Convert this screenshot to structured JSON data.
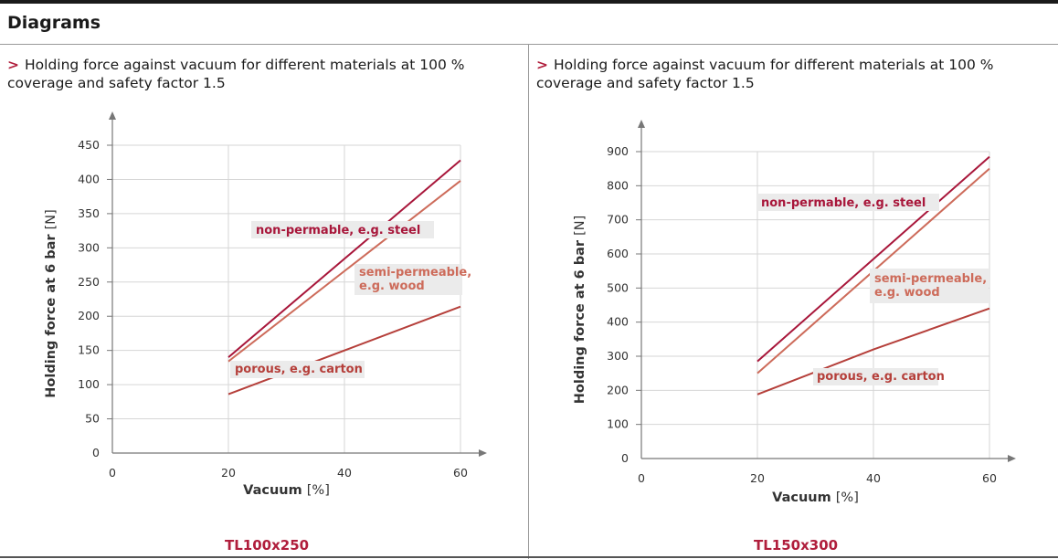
{
  "section_title": "Diagrams",
  "panels": [
    {
      "caption_marker": ">",
      "caption": "Holding force against vacuum for different materials at 100 % coverage and safety factor 1.5",
      "model": "TL100x250"
    },
    {
      "caption_marker": ">",
      "caption": "Holding force against vacuum for different materials at 100 % coverage and safety factor 1.5",
      "model": "TL150x300"
    }
  ],
  "colors": {
    "steel": "#a8163a",
    "wood": "#cd6b5a",
    "carton": "#b53f3a",
    "label_bg": "#ebebeb",
    "grid": "#d6d6d6",
    "axis": "#777777"
  },
  "chart_data": [
    {
      "type": "line",
      "title": "TL100x250",
      "xlabel": "Vacuum",
      "xlabel_unit": "[%]",
      "ylabel": "Holding force at 6 bar",
      "ylabel_unit": "[N]",
      "xlim": [
        0,
        60
      ],
      "ylim": [
        0,
        450
      ],
      "x_ticks": [
        0,
        20,
        40,
        60
      ],
      "y_ticks": [
        0,
        50,
        100,
        150,
        200,
        250,
        300,
        350,
        400,
        450
      ],
      "grid": true,
      "series": [
        {
          "name": "non-permable, e.g. steel",
          "key": "steel",
          "x": [
            20,
            60
          ],
          "y": [
            140,
            428
          ]
        },
        {
          "name": "semi-permeable, e.g. wood",
          "key": "wood",
          "x": [
            20,
            60
          ],
          "y": [
            134,
            398
          ]
        },
        {
          "name": "porous, e.g. carton",
          "key": "carton",
          "x": [
            20,
            60
          ],
          "y": [
            86,
            214
          ]
        }
      ]
    },
    {
      "type": "line",
      "title": "TL150x300",
      "xlabel": "Vacuum",
      "xlabel_unit": "[%]",
      "ylabel": "Holding force at 6 bar",
      "ylabel_unit": "[N]",
      "xlim": [
        0,
        60
      ],
      "ylim": [
        0,
        900
      ],
      "x_ticks": [
        0,
        20,
        40,
        60
      ],
      "y_ticks": [
        0,
        100,
        200,
        300,
        400,
        500,
        600,
        700,
        800,
        900
      ],
      "grid": true,
      "series": [
        {
          "name": "non-permable, e.g. steel",
          "key": "steel",
          "x": [
            20,
            60
          ],
          "y": [
            285,
            885
          ]
        },
        {
          "name": "semi-permeable, e.g. wood",
          "key": "wood",
          "x": [
            20,
            60
          ],
          "y": [
            250,
            850
          ]
        },
        {
          "name": "porous, e.g. carton",
          "key": "carton",
          "x": [
            20,
            40,
            60
          ],
          "y": [
            188,
            320,
            440
          ]
        }
      ]
    }
  ]
}
